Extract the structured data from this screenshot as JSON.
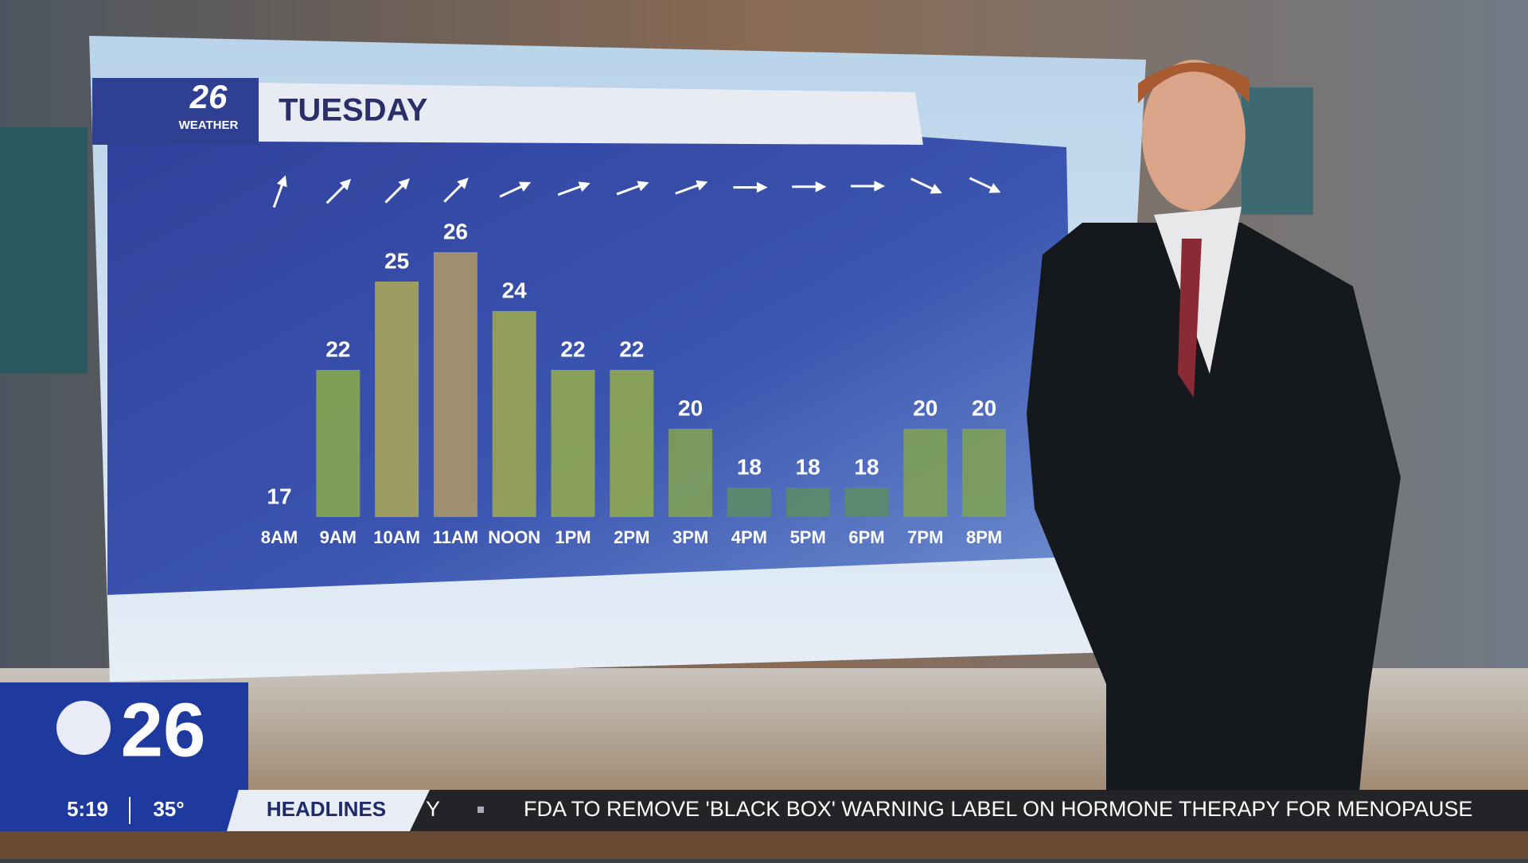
{
  "chart_data": {
    "type": "bar",
    "title": "TUESDAY",
    "categories": [
      "8AM",
      "9AM",
      "10AM",
      "11AM",
      "NOON",
      "1PM",
      "2PM",
      "3PM",
      "4PM",
      "5PM",
      "6PM",
      "7PM",
      "8PM"
    ],
    "values": [
      17,
      22,
      25,
      26,
      24,
      22,
      22,
      20,
      18,
      18,
      18,
      20,
      20
    ],
    "colors": [
      "#7f9a5a",
      "#86a650",
      "#a6a35c",
      "#a8956a",
      "#98a552",
      "#8ea650",
      "#8ea650",
      "#7e9e58",
      "#5c8a6a",
      "#5c8a6a",
      "#5c8a6a",
      "#7e9e58",
      "#7e9e58"
    ]
  },
  "weather_logo": {
    "number": "26",
    "label": "WEATHER"
  },
  "station": {
    "number": "26",
    "time": "5:19",
    "temperature": "35°"
  },
  "ticker": {
    "section": "HEADLINES",
    "fragment": "Y",
    "headline": "FDA TO REMOVE 'BLACK BOX' WARNING LABEL ON HORMONE THERAPY FOR MENOPAUSE"
  }
}
